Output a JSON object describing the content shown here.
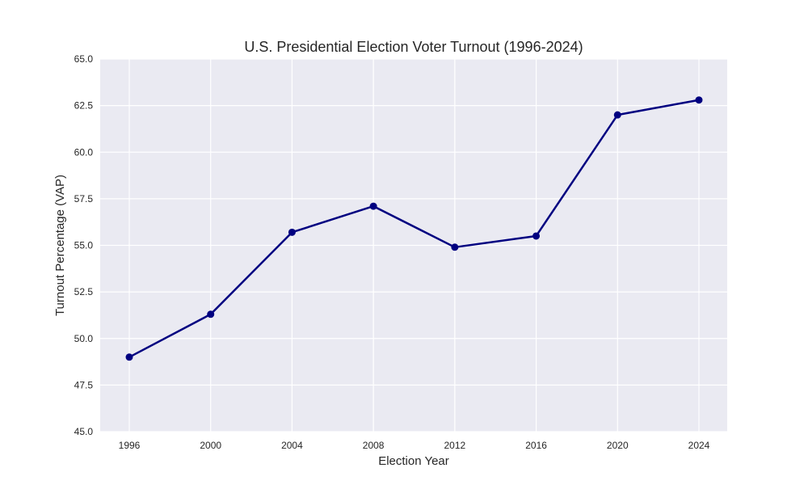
{
  "chart_data": {
    "type": "line",
    "title": "U.S. Presidential Election Voter Turnout (1996-2024)",
    "xlabel": "Election Year",
    "ylabel": "Turnout Percentage (VAP)",
    "x": [
      "1996",
      "2000",
      "2004",
      "2008",
      "2012",
      "2016",
      "2020",
      "2024"
    ],
    "series": [
      {
        "name": "",
        "values": [
          49.0,
          51.3,
          55.7,
          57.1,
          54.9,
          55.5,
          62.0,
          62.8
        ]
      }
    ],
    "ylim": [
      45.0,
      65.0
    ],
    "yticks": [
      "45.0",
      "47.5",
      "50.0",
      "52.5",
      "55.0",
      "57.5",
      "60.0",
      "62.5",
      "65.0"
    ],
    "grid": true,
    "legend": "none",
    "colors": {
      "line": "#000080",
      "plot_background": "#eaeaf2",
      "grid": "#ffffff",
      "text": "#262626"
    }
  }
}
